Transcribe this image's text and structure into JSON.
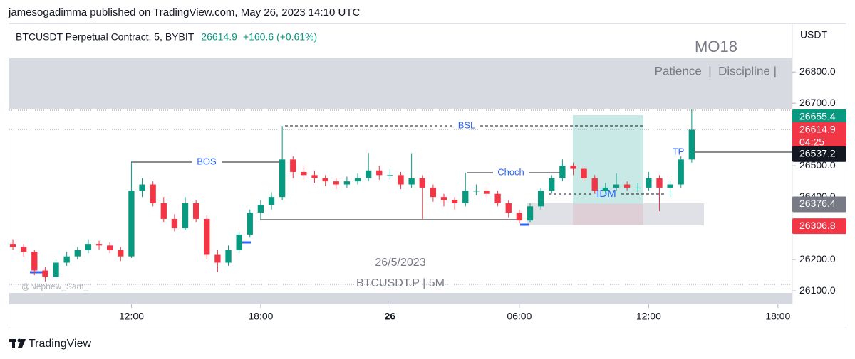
{
  "header": {
    "publisher": "jamesogadimma published on TradingView.com, May 26, 2023 14:10 UTC"
  },
  "chart_data": {
    "type": "candlestick",
    "title": "BTCUSDT Perpetual Contract, 5, BYBIT",
    "last_price": 26614.9,
    "change": "+160.6 (+0.61%)",
    "y_axis_label": "USDT",
    "up_color": "#089981",
    "down_color": "#f23645",
    "x": [
      6.5,
      7,
      7.5,
      8,
      8.5,
      9,
      9.5,
      10,
      10.5,
      11,
      11.5,
      12,
      12.5,
      13,
      13.5,
      14,
      14.5,
      15,
      15.5,
      16,
      16.5,
      17,
      17.5,
      18,
      18.5,
      19,
      19.5,
      20,
      20.5,
      21,
      21.5,
      22,
      22.5,
      23,
      23.5,
      24,
      24.5,
      25,
      25.5,
      26,
      26.5,
      27,
      27.5,
      28,
      28.5,
      29,
      29.5,
      30,
      30.5,
      31,
      31.5,
      32,
      32.5,
      33,
      33.5,
      34,
      34.5,
      35,
      35.5,
      36,
      36.5,
      37,
      37.5,
      38
    ],
    "open": [
      26250,
      26240,
      26225,
      26165,
      26145,
      26190,
      26210,
      26230,
      26250,
      26245,
      26230,
      26210,
      26420,
      26440,
      26380,
      26330,
      26300,
      26380,
      26330,
      26215,
      26190,
      26230,
      26280,
      26350,
      26375,
      26400,
      26520,
      26480,
      26470,
      26460,
      26450,
      26440,
      26450,
      26460,
      26485,
      26470,
      26470,
      26440,
      26460,
      26430,
      26400,
      26390,
      26380,
      26420,
      26420,
      26410,
      26380,
      26350,
      26325,
      26370,
      26420,
      26460,
      26500,
      26490,
      26460,
      26420,
      26430,
      26440,
      26430,
      26430,
      26460,
      26430,
      26440,
      26520
    ],
    "high": [
      26265,
      26250,
      26230,
      26175,
      26200,
      26225,
      26240,
      26265,
      26260,
      26255,
      26240,
      26510,
      26460,
      26450,
      26400,
      26345,
      26400,
      26390,
      26340,
      26230,
      26245,
      26290,
      26360,
      26390,
      26415,
      26627,
      26530,
      26500,
      26485,
      26470,
      26460,
      26465,
      26475,
      26541,
      26500,
      26490,
      26480,
      26540,
      26470,
      26440,
      26410,
      26400,
      26477,
      26440,
      26430,
      26420,
      26390,
      26360,
      26380,
      26430,
      26470,
      26520,
      26510,
      26500,
      26470,
      26445,
      26475,
      26450,
      26445,
      26480,
      26470,
      26450,
      26530,
      26680
    ],
    "low": [
      26230,
      26210,
      26150,
      26130,
      26140,
      26180,
      26200,
      26220,
      26230,
      26220,
      26195,
      26205,
      26400,
      26370,
      26320,
      26290,
      26295,
      26320,
      26200,
      26160,
      26180,
      26220,
      26270,
      26330,
      26360,
      26390,
      26460,
      26455,
      26445,
      26435,
      26425,
      26430,
      26440,
      26450,
      26455,
      26455,
      26425,
      26430,
      26330,
      26385,
      26370,
      26360,
      26370,
      26405,
      26395,
      26370,
      26335,
      26315,
      26320,
      26360,
      26410,
      26450,
      26470,
      26450,
      26410,
      26410,
      26420,
      26420,
      26415,
      26420,
      26355,
      26400,
      26430,
      26510
    ],
    "close": [
      26240,
      26225,
      26165,
      26145,
      26190,
      26210,
      26230,
      26250,
      26245,
      26230,
      26210,
      26420,
      26440,
      26380,
      26330,
      26300,
      26380,
      26330,
      26215,
      26190,
      26230,
      26280,
      26350,
      26375,
      26400,
      26520,
      26480,
      26470,
      26460,
      26450,
      26440,
      26450,
      26460,
      26485,
      26470,
      26470,
      26440,
      26460,
      26430,
      26400,
      26390,
      26380,
      26420,
      26420,
      26410,
      26380,
      26350,
      26325,
      26370,
      26420,
      26460,
      26500,
      26490,
      26460,
      26420,
      26430,
      26440,
      26430,
      26430,
      26460,
      26430,
      26440,
      26520,
      26614.9
    ],
    "xlim": [
      6.3,
      42.6
    ],
    "xticks": [
      {
        "value": 12,
        "label": "12:00"
      },
      {
        "value": 18,
        "label": "18:00"
      },
      {
        "value": 24,
        "label": "26"
      },
      {
        "value": 30,
        "label": "06:00"
      },
      {
        "value": 36,
        "label": "12:00"
      },
      {
        "value": 42,
        "label": "18:00"
      }
    ],
    "ylim": [
      26057,
      26955
    ],
    "yticks": [
      {
        "value": 26100,
        "label": "26100.0"
      },
      {
        "value": 26200,
        "label": "26200.0"
      },
      {
        "value": 26400,
        "label": "26400.0"
      },
      {
        "value": 26500,
        "label": "26500.0"
      },
      {
        "value": 26700,
        "label": "26700.0"
      },
      {
        "value": 26800,
        "label": "26800.0"
      }
    ],
    "price_labels": [
      {
        "value": 26655.4,
        "color": "#089981"
      },
      {
        "value": 26614.9,
        "color": "#f23645"
      },
      {
        "value": 26537.2,
        "color": "#131722"
      },
      {
        "value": 26376.4,
        "color": "#787b86"
      },
      {
        "value": 26306.8,
        "color": "#f23645"
      }
    ],
    "countdown": "04:25",
    "annotations": {
      "bos": "BOS",
      "bsl": "BSL",
      "choch": "Choch",
      "idm": "IDM",
      "tp": "TP",
      "title_box": "MO18",
      "motto": "Patience  |  Discipline |",
      "date": "26/5/2023",
      "symbol": "BTCUSDT.P | 5M",
      "watermark": "@Nephew_Sam_"
    }
  },
  "footer": {
    "brand": "TradingView"
  }
}
